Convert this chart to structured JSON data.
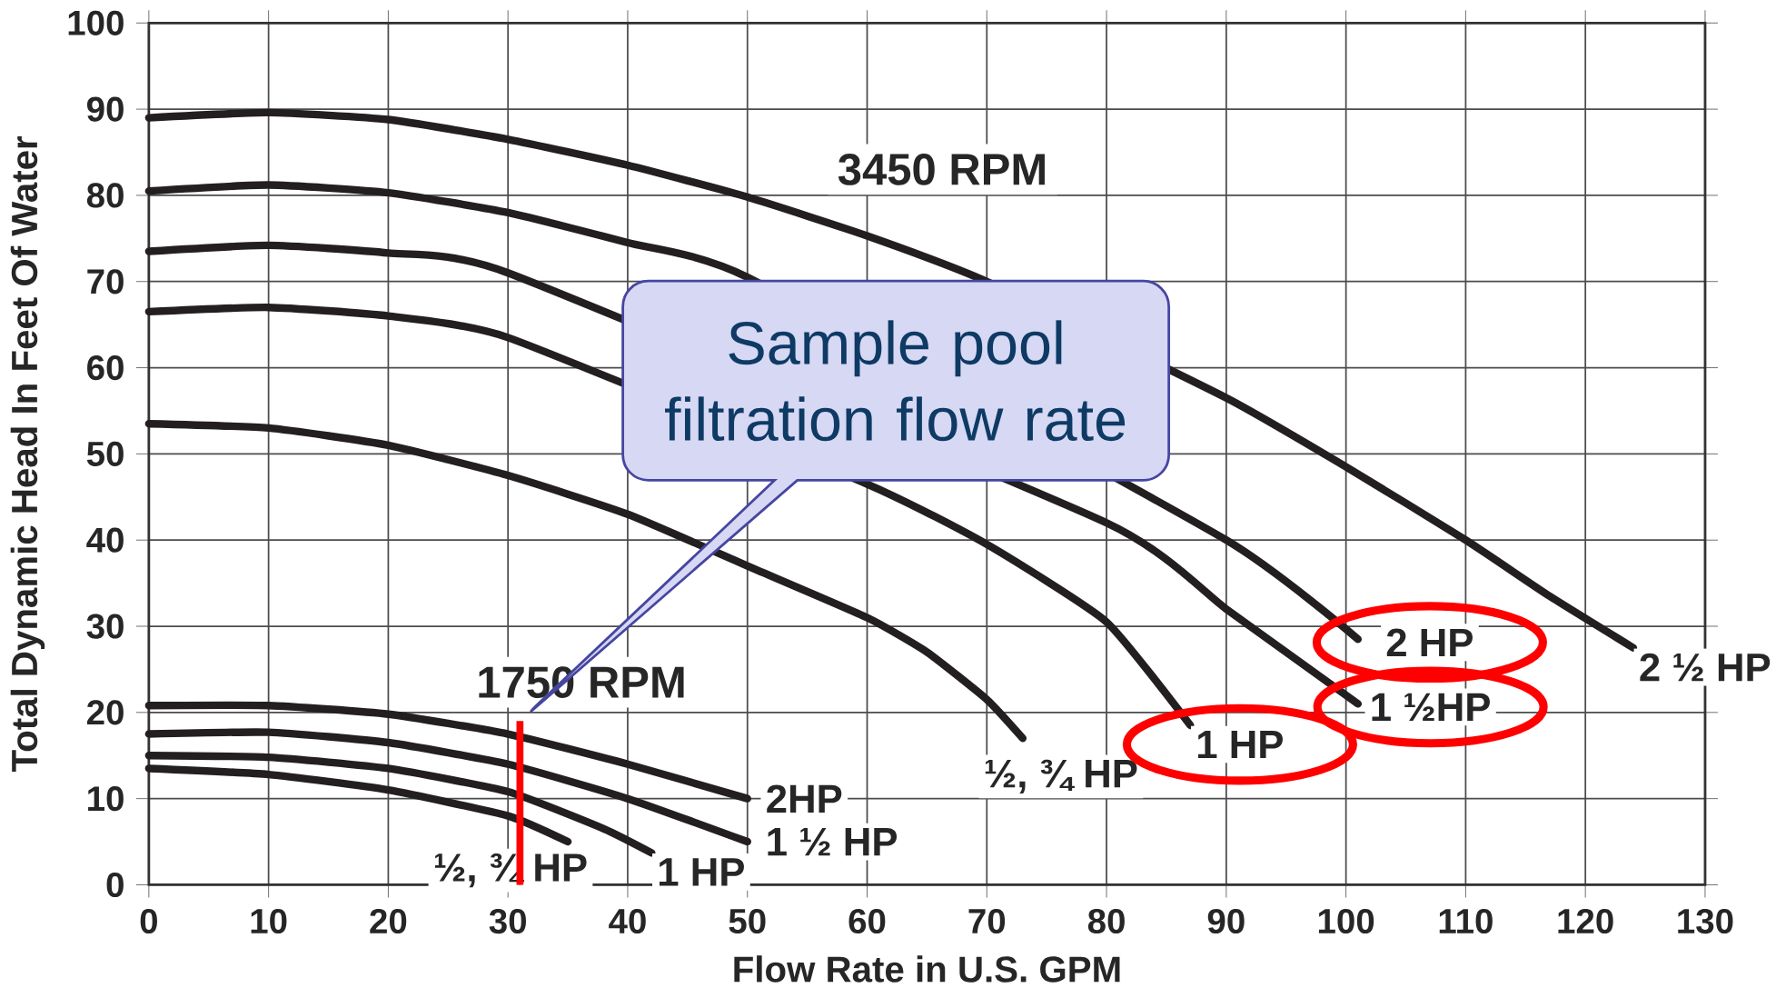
{
  "chart_data": {
    "type": "line",
    "xlabel": "Flow Rate in U.S. GPM",
    "ylabel": "Total Dynamic Head In Feet Of Water",
    "xlim": [
      0,
      130
    ],
    "ylim": [
      0,
      100
    ],
    "xticks": [
      0,
      10,
      20,
      30,
      40,
      50,
      60,
      70,
      80,
      90,
      100,
      110,
      120,
      130
    ],
    "yticks": [
      0,
      10,
      20,
      30,
      40,
      50,
      60,
      70,
      80,
      90,
      100
    ],
    "grid": true,
    "annotations": [
      "3450 RPM",
      "1750 RPM",
      "Sample pool filtration flow rate"
    ],
    "ref_lines": [
      {
        "axis": "x",
        "value": 31,
        "color": "#ff0000"
      }
    ],
    "series": [
      {
        "name": "2 ½ HP",
        "color": "#231f20",
        "x": [
          0,
          10,
          20,
          30,
          40,
          50,
          60,
          70,
          80,
          90,
          100,
          110,
          117,
          124
        ],
        "values": [
          89,
          89.6,
          88.8,
          86.5,
          83.5,
          79.8,
          75.3,
          70,
          null,
          56.5,
          48.5,
          40,
          33.5,
          27.5
        ]
      },
      {
        "name": "2 HP",
        "color": "#231f20",
        "x": [
          0,
          10,
          20,
          30,
          40,
          50,
          60,
          70,
          80,
          90,
          101
        ],
        "values": [
          80.5,
          81.2,
          80.3,
          78,
          74.5,
          70.5,
          null,
          null,
          null,
          40,
          28.5
        ]
      },
      {
        "name": "1 ½HP",
        "color": "#231f20",
        "x": [
          0,
          10,
          20,
          30,
          40,
          50,
          60,
          70,
          80,
          90,
          101
        ],
        "values": [
          73.5,
          74.2,
          73.3,
          71,
          null,
          null,
          null,
          null,
          42,
          32,
          21
        ]
      },
      {
        "name": "1 HP",
        "color": "#231f20",
        "x": [
          0,
          10,
          20,
          30,
          40,
          50,
          60,
          70,
          80,
          87
        ],
        "values": [
          66.5,
          67,
          66,
          63.5,
          null,
          null,
          46.5,
          39.5,
          30.5,
          18.5
        ]
      },
      {
        "name": "½, ¾ HP",
        "color": "#231f20",
        "x": [
          0,
          10,
          20,
          30,
          40,
          50,
          60,
          65,
          70,
          73
        ],
        "values": [
          53.5,
          53,
          51,
          47.5,
          43,
          37,
          31,
          27,
          21.5,
          17
        ]
      },
      {
        "name": "2HP",
        "color": "#231f20",
        "x": [
          0,
          10,
          20,
          30,
          40,
          50
        ],
        "values": [
          20.8,
          20.8,
          19.8,
          17.5,
          14,
          10
        ]
      },
      {
        "name": "1 ½ HP",
        "color": "#231f20",
        "x": [
          0,
          10,
          20,
          30,
          40,
          50
        ],
        "values": [
          17.5,
          17.7,
          16.5,
          14,
          10,
          5
        ]
      },
      {
        "name": "1 HP",
        "color": "#231f20",
        "x": [
          0,
          10,
          20,
          30,
          38,
          42
        ],
        "values": [
          15,
          14.8,
          13.5,
          10.8,
          6.5,
          3.7
        ]
      },
      {
        "name": "½, ¾ HP",
        "color": "#231f20",
        "x": [
          0,
          10,
          20,
          30,
          35
        ],
        "values": [
          13.5,
          12.8,
          11,
          8,
          5
        ]
      }
    ]
  }
}
